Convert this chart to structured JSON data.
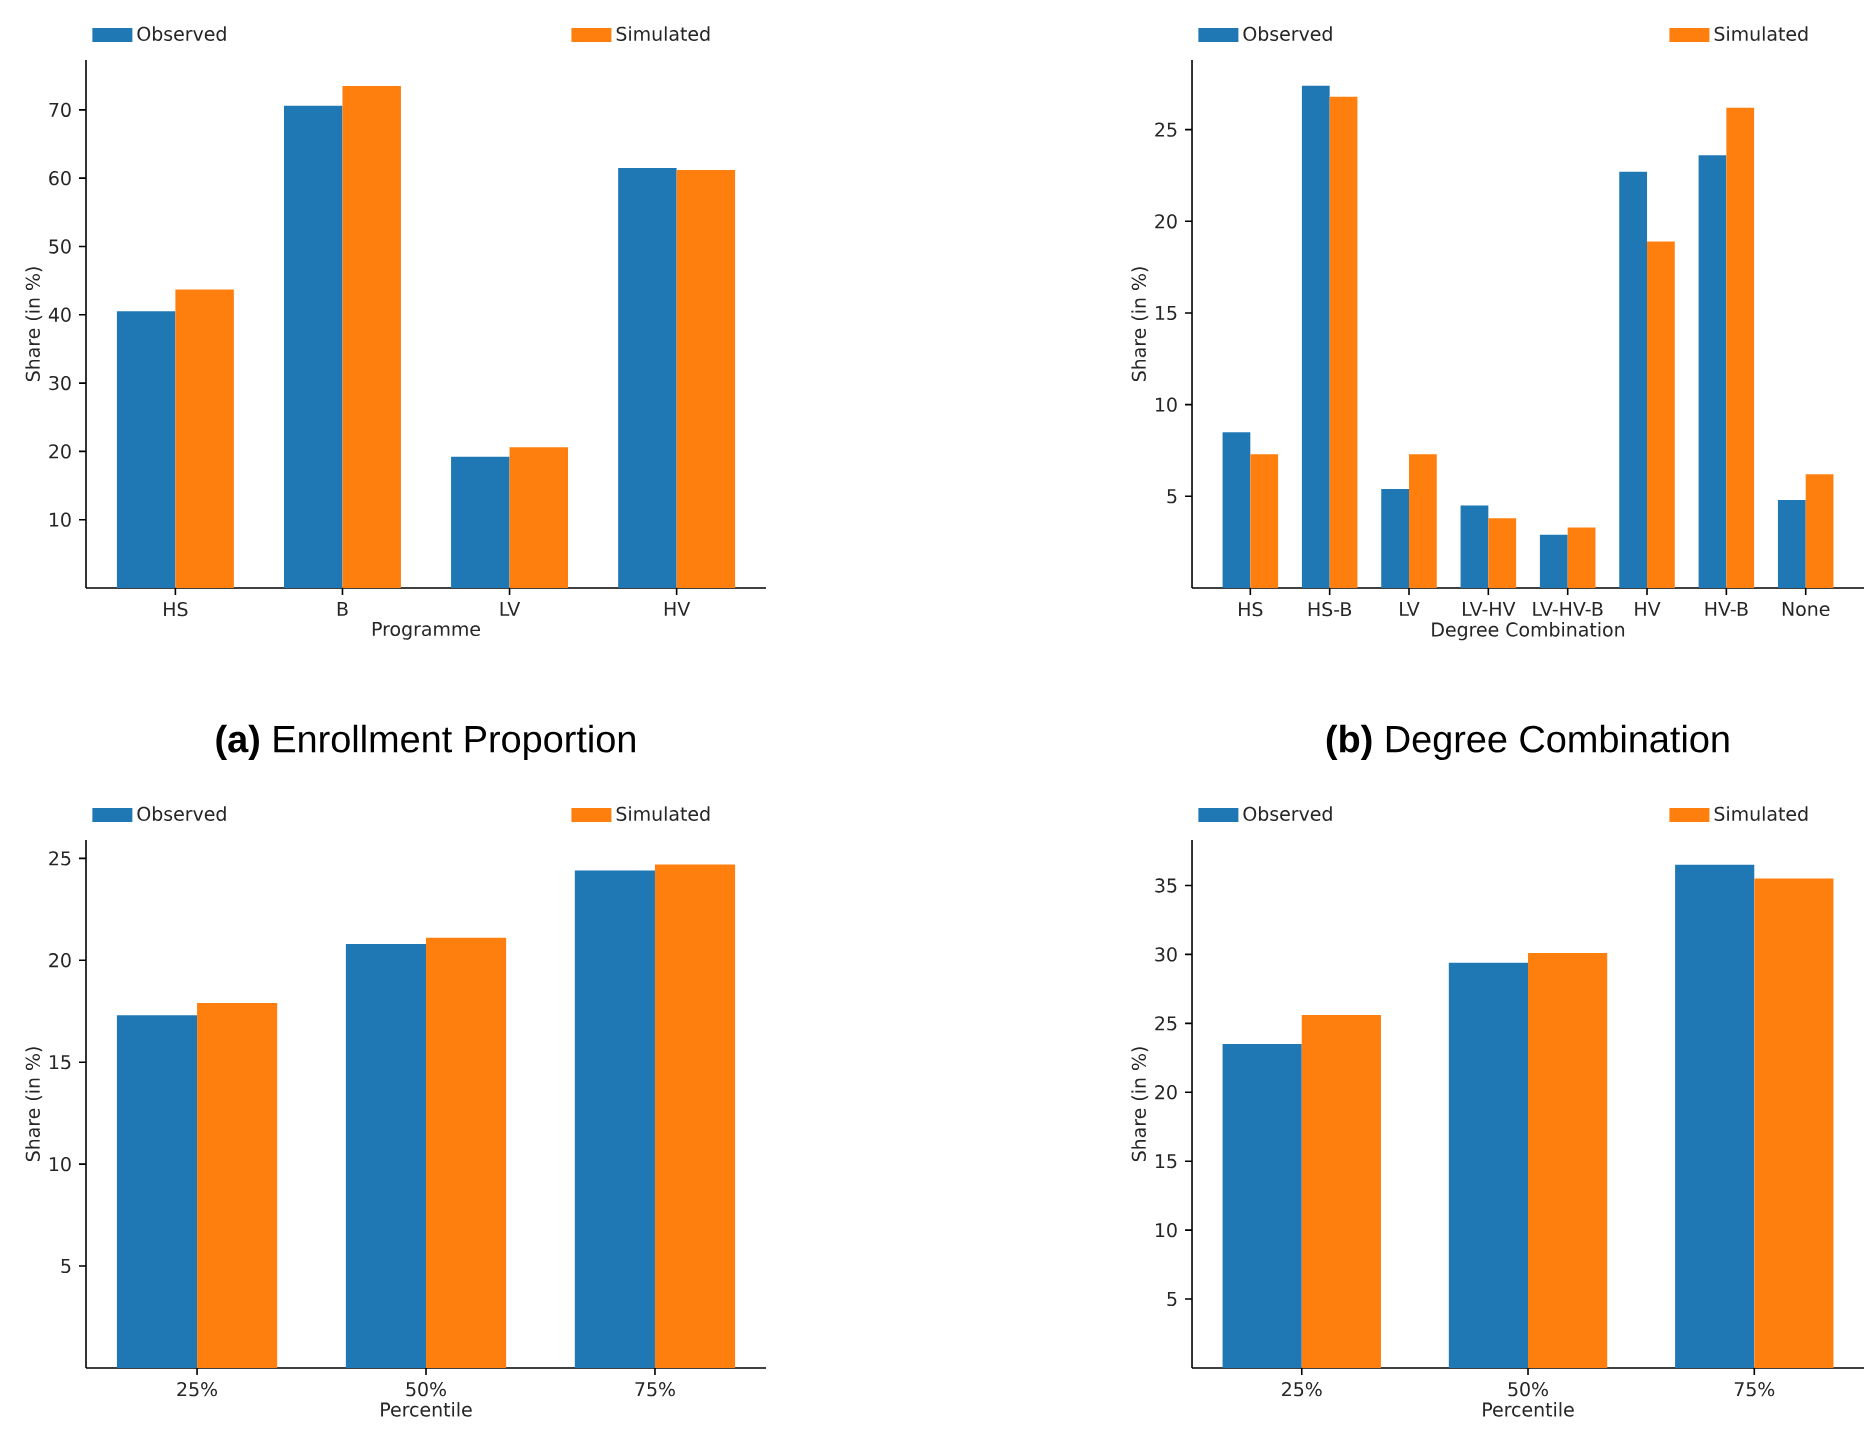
{
  "chart_data": [
    {
      "type": "bar",
      "title": "**(a)** Enrollment Proportion",
      "xlabel": "Programme",
      "ylabel": "Share (in %)",
      "categories": [
        "HS",
        "B",
        "LV",
        "HV"
      ],
      "series": [
        {
          "name": "Observed",
          "color": "#1f77b4",
          "values": [
            40.5,
            70.6,
            19.2,
            61.5
          ]
        },
        {
          "name": "Simulated",
          "color": "#ff7f0e",
          "values": [
            43.7,
            73.5,
            20.6,
            61.2
          ]
        }
      ],
      "ylim": [
        0,
        77.3
      ],
      "yticks": [
        10,
        20,
        30,
        40,
        50,
        60,
        70
      ],
      "legend": "top"
    },
    {
      "type": "bar",
      "title": "**(b)** Degree Combination",
      "xlabel": "Degree Combination",
      "ylabel": "Share (in %)",
      "categories": [
        "HS",
        "HS-B",
        "LV",
        "LV-HV",
        "LV-HV-B",
        "HV",
        "HV-B",
        "None"
      ],
      "series": [
        {
          "name": "Observed",
          "color": "#1f77b4",
          "values": [
            8.5,
            27.4,
            5.4,
            4.5,
            2.9,
            22.7,
            23.6,
            4.8
          ]
        },
        {
          "name": "Simulated",
          "color": "#ff7f0e",
          "values": [
            7.3,
            26.8,
            7.3,
            3.8,
            3.3,
            18.9,
            26.2,
            6.2
          ]
        }
      ],
      "ylim": [
        0,
        28.8
      ],
      "yticks": [
        5,
        10,
        15,
        20,
        25
      ],
      "legend": "top"
    },
    {
      "type": "bar",
      "xlabel": "Percentile",
      "ylabel": "Share (in %)",
      "categories": [
        "25%",
        "50%",
        "75%"
      ],
      "series": [
        {
          "name": "Observed",
          "color": "#1f77b4",
          "values": [
            17.3,
            20.8,
            24.4
          ]
        },
        {
          "name": "Simulated",
          "color": "#ff7f0e",
          "values": [
            17.9,
            21.1,
            24.7
          ]
        }
      ],
      "ylim": [
        0,
        25.9
      ],
      "yticks": [
        5,
        10,
        15,
        20,
        25
      ],
      "legend": "top"
    },
    {
      "type": "bar",
      "xlabel": "Percentile",
      "ylabel": "Share (in %)",
      "categories": [
        "25%",
        "50%",
        "75%"
      ],
      "series": [
        {
          "name": "Observed",
          "color": "#1f77b4",
          "values": [
            23.5,
            29.4,
            36.5
          ]
        },
        {
          "name": "Simulated",
          "color": "#ff7f0e",
          "values": [
            25.6,
            30.1,
            35.5
          ]
        }
      ],
      "ylim": [
        0,
        38.3
      ],
      "yticks": [
        5,
        10,
        15,
        20,
        25,
        30,
        35
      ],
      "legend": "top"
    }
  ]
}
